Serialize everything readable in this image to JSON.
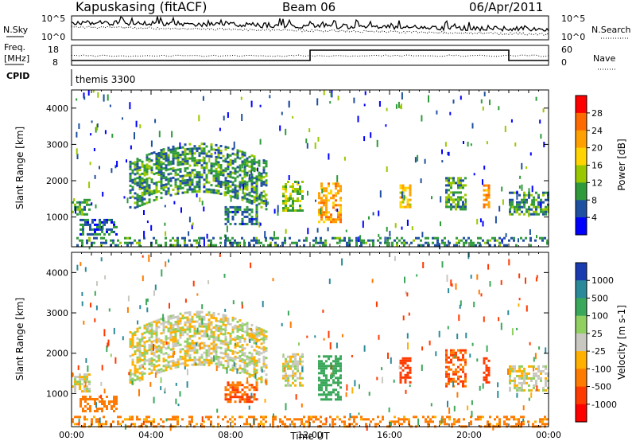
{
  "header": {
    "station": "Kapuskasing (fitACF)",
    "beam": "Beam 06",
    "date": "06/Apr/2011"
  },
  "top_panels": {
    "nsky_label": "N.Sky",
    "nsearch_label": "N.Search",
    "nsky_ticks": [
      "10^5",
      "10^0"
    ],
    "freq_label_line1": "Freq.",
    "freq_label_line2": "[MHz]",
    "freq_ticks": [
      "18",
      "8"
    ],
    "nave_label": "Nave",
    "nave_ticks": [
      "60",
      "0"
    ],
    "cpid_label": "CPID",
    "cpid_value": "themis 3300"
  },
  "power_colorbar": {
    "title": "Power [dB]",
    "ticks": [
      "28",
      "24",
      "20",
      "16",
      "12",
      "8",
      "4"
    ],
    "colors": [
      "#ff0000",
      "#ff6a00",
      "#ffa000",
      "#ffd400",
      "#9ac800",
      "#2f9a3a",
      "#1e4fa0",
      "#0000ff"
    ]
  },
  "velocity_colorbar": {
    "title": "Velocity [m s-1]",
    "ticks": [
      "1000",
      "500",
      "100",
      "25",
      "-25",
      "-100",
      "-500",
      "-1000"
    ],
    "colors": [
      "#1a3bb0",
      "#2a8a9a",
      "#3aa85a",
      "#8fd060",
      "#c8c8c0",
      "#ffb000",
      "#ff7a00",
      "#ff3a00",
      "#ff0000"
    ]
  },
  "chart_data": [
    {
      "type": "heatmap",
      "name": "power",
      "ylabel": "Slant Range [km]",
      "xlim": [
        0,
        24
      ],
      "ylim": [
        180,
        4500
      ],
      "yticks": [
        1000,
        2000,
        3000,
        4000
      ],
      "ytick_labels": [
        "1000",
        "2000",
        "3000",
        "4000"
      ],
      "clim": [
        0,
        30
      ],
      "features": [
        {
          "t": [
            0.0,
            0.9
          ],
          "r": [
            1050,
            1500
          ],
          "v": 10
        },
        {
          "t": [
            0.4,
            2.3
          ],
          "r": [
            550,
            950
          ],
          "v": 6
        },
        {
          "t": [
            2.9,
            9.8
          ],
          "r": [
            1350,
            2700
          ],
          "v": 9
        },
        {
          "t": [
            7.7,
            9.3
          ],
          "r": [
            800,
            1300
          ],
          "v": 7
        },
        {
          "t": [
            10.6,
            11.6
          ],
          "r": [
            1200,
            2000
          ],
          "v": 12
        },
        {
          "t": [
            12.4,
            13.6
          ],
          "r": [
            850,
            1950
          ],
          "v": 20
        },
        {
          "t": [
            16.5,
            17.0
          ],
          "r": [
            1300,
            1900
          ],
          "v": 18
        },
        {
          "t": [
            18.8,
            19.8
          ],
          "r": [
            1200,
            2100
          ],
          "v": 10
        },
        {
          "t": [
            20.7,
            21.0
          ],
          "r": [
            1300,
            1900
          ],
          "v": 22
        },
        {
          "t": [
            22.0,
            24.0
          ],
          "r": [
            1050,
            1700
          ],
          "v": 9
        },
        {
          "t": [
            0.0,
            24.0
          ],
          "r": [
            200,
            450
          ],
          "v": 8
        }
      ]
    },
    {
      "type": "heatmap",
      "name": "velocity",
      "xlabel": "Time UT",
      "ylabel": "Slant Range [km]",
      "xlim": [
        0,
        24
      ],
      "ylim": [
        180,
        4500
      ],
      "xticks": [
        0,
        4,
        8,
        12,
        16,
        20,
        24
      ],
      "xtick_labels": [
        "00:00",
        "04:00",
        "08:00",
        "12:00",
        "16:00",
        "20:00",
        "00:00"
      ],
      "yticks": [
        1000,
        2000,
        3000,
        4000
      ],
      "ytick_labels": [
        "1000",
        "2000",
        "3000",
        "4000"
      ],
      "features": [
        {
          "t": [
            0.0,
            0.9
          ],
          "r": [
            1050,
            1500
          ],
          "v": 0
        },
        {
          "t": [
            0.4,
            2.3
          ],
          "r": [
            550,
            950
          ],
          "v": -200
        },
        {
          "t": [
            2.9,
            9.8
          ],
          "r": [
            1350,
            2700
          ],
          "v": 0
        },
        {
          "t": [
            7.7,
            9.3
          ],
          "r": [
            800,
            1300
          ],
          "v": -300
        },
        {
          "t": [
            10.6,
            11.6
          ],
          "r": [
            1200,
            2000
          ],
          "v": 0
        },
        {
          "t": [
            12.4,
            13.6
          ],
          "r": [
            850,
            1950
          ],
          "v": 150
        },
        {
          "t": [
            16.5,
            17.0
          ],
          "r": [
            1300,
            1900
          ],
          "v": -400
        },
        {
          "t": [
            18.8,
            19.8
          ],
          "r": [
            1200,
            2100
          ],
          "v": -300
        },
        {
          "t": [
            20.7,
            21.0
          ],
          "r": [
            1300,
            1900
          ],
          "v": -700
        },
        {
          "t": [
            22.0,
            24.0
          ],
          "r": [
            1050,
            1700
          ],
          "v": 0
        },
        {
          "t": [
            0.0,
            24.0
          ],
          "r": [
            200,
            450
          ],
          "v": -100
        }
      ]
    }
  ]
}
